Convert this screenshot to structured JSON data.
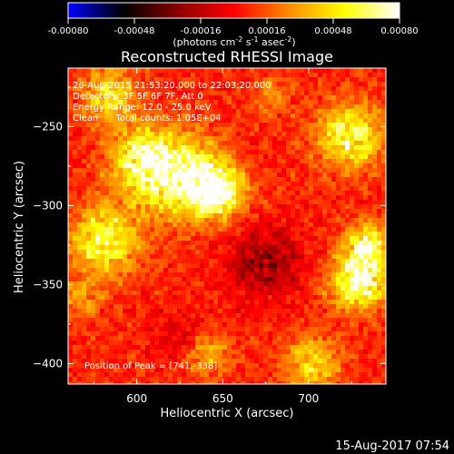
{
  "colorbar": {
    "ticks": [
      "-0.00080",
      "-0.00048",
      "-0.00016",
      "0.00016",
      "0.00048",
      "0.00080"
    ],
    "tick_values": [
      -0.0008,
      -0.00048,
      -0.00016,
      0.00016,
      0.00048,
      0.0008
    ],
    "range": [
      -0.0008,
      0.0008
    ],
    "units_main": "(photons cm",
    "units_sup1": "-2",
    "units_mid1": " s",
    "units_sup2": "-1",
    "units_mid2": " asec",
    "units_sup3": "-2",
    "units_end": ")",
    "colors": [
      "#0000ff",
      "#000000",
      "#8b0000",
      "#ff0000",
      "#ff8c00",
      "#ffff00",
      "#ffffff"
    ]
  },
  "chart_data": {
    "type": "heatmap",
    "title": "Reconstructed RHESSI Image",
    "xlabel": "Heliocentric X (arcsec)",
    "ylabel": "Heliocentric Y (arcsec)",
    "xlim": [
      560,
      745
    ],
    "ylim": [
      -413,
      -213
    ],
    "x_ticks": [
      600,
      650,
      700
    ],
    "y_ticks": [
      -250,
      -300,
      -350,
      -400
    ],
    "value_range": [
      -0.0008,
      0.0008
    ],
    "peak": [
      741,
      -338
    ],
    "grid": false
  },
  "info": {
    "line1": "26-Aug-2015 21:53:20.000 to 22:03:20.000",
    "line2": "Detectors: 3F 5F 6F 7F, Att 0",
    "line3": "Energy Range: 12.0 - 25.0 keV",
    "line4": "Clean      Total counts: 1.05E+04",
    "peak_text": "Position of Peak = [741,-338]"
  },
  "timestamp": "15-Aug-2017 07:54"
}
